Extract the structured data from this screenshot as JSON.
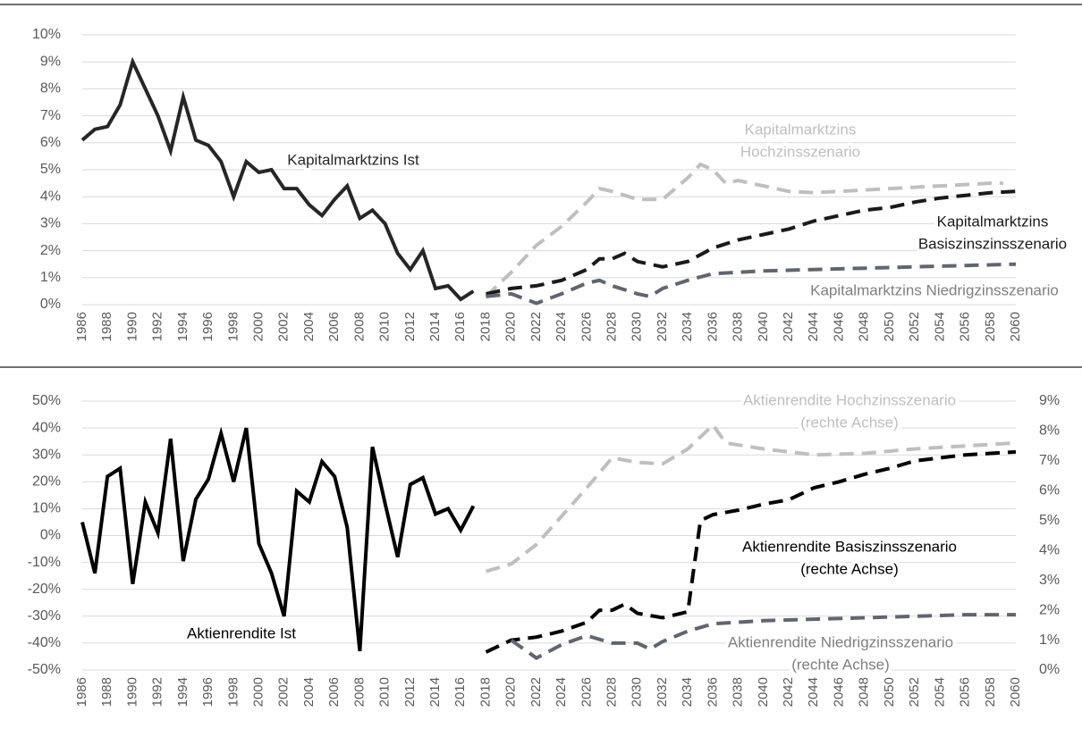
{
  "chart_data": [
    {
      "type": "line",
      "xlim": [
        1986,
        2060
      ],
      "xticks": [
        1986,
        1988,
        1990,
        1992,
        1994,
        1996,
        1998,
        2000,
        2002,
        2004,
        2006,
        2008,
        2010,
        2012,
        2014,
        2016,
        2018,
        2020,
        2022,
        2024,
        2026,
        2028,
        2030,
        2032,
        2034,
        2036,
        2038,
        2040,
        2042,
        2044,
        2046,
        2048,
        2050,
        2052,
        2054,
        2056,
        2058,
        2060
      ],
      "ylim": [
        0,
        10
      ],
      "yticks": [
        {
          "value": 0,
          "label": "0%"
        },
        {
          "value": 1,
          "label": "1%"
        },
        {
          "value": 2,
          "label": "2%"
        },
        {
          "value": 3,
          "label": "3%"
        },
        {
          "value": 4,
          "label": "4%"
        },
        {
          "value": 5,
          "label": "5%"
        },
        {
          "value": 6,
          "label": "6%"
        },
        {
          "value": 7,
          "label": "7%"
        },
        {
          "value": 8,
          "label": "8%"
        },
        {
          "value": 9,
          "label": "9%"
        },
        {
          "value": 10,
          "label": "10%"
        }
      ],
      "grid": true,
      "series": [
        {
          "color": "#262626",
          "dash": false,
          "x": [
            1986,
            1987,
            1988,
            1989,
            1990,
            1991,
            1992,
            1993,
            1994,
            1995,
            1996,
            1997,
            1998,
            1999,
            2000,
            2001,
            2002,
            2003,
            2004,
            2005,
            2006,
            2007,
            2008,
            2009,
            2010,
            2011,
            2012,
            2013,
            2014,
            2015,
            2016,
            2017
          ],
          "values": [
            6.1,
            6.5,
            6.6,
            7.4,
            9.0,
            8.0,
            7.0,
            5.7,
            7.7,
            6.1,
            5.9,
            5.3,
            4.0,
            5.3,
            4.9,
            5.0,
            4.3,
            4.3,
            3.7,
            3.3,
            3.9,
            4.4,
            3.2,
            3.5,
            3.0,
            1.9,
            1.3,
            2.0,
            0.6,
            0.7,
            0.2,
            0.5
          ]
        },
        {
          "color": "#bfbfbf",
          "dash": true,
          "x": [
            2018,
            2020,
            2022,
            2024,
            2026,
            2027,
            2028,
            2030,
            2032,
            2034,
            2035,
            2036,
            2037,
            2038,
            2040,
            2042,
            2044,
            2046,
            2048,
            2050,
            2052,
            2054,
            2056,
            2058,
            2059
          ],
          "values": [
            0.3,
            1.2,
            2.2,
            2.9,
            3.8,
            4.3,
            4.2,
            3.9,
            3.9,
            4.7,
            5.2,
            5.0,
            4.5,
            4.6,
            4.4,
            4.2,
            4.15,
            4.2,
            4.25,
            4.3,
            4.35,
            4.4,
            4.45,
            4.5,
            4.5
          ]
        },
        {
          "color": "#1a1a1a",
          "dash": true,
          "x": [
            2018,
            2020,
            2022,
            2024,
            2026,
            2027,
            2028,
            2029,
            2030,
            2032,
            2034,
            2036,
            2038,
            2040,
            2042,
            2044,
            2046,
            2048,
            2050,
            2052,
            2054,
            2056,
            2058,
            2060
          ],
          "values": [
            0.4,
            0.6,
            0.7,
            0.9,
            1.3,
            1.7,
            1.7,
            1.9,
            1.6,
            1.4,
            1.6,
            2.1,
            2.4,
            2.6,
            2.8,
            3.1,
            3.3,
            3.5,
            3.6,
            3.8,
            3.95,
            4.05,
            4.15,
            4.2
          ]
        },
        {
          "color": "#5f6670",
          "dash": true,
          "x": [
            2018,
            2020,
            2022,
            2024,
            2026,
            2027,
            2028,
            2030,
            2031,
            2032,
            2034,
            2036,
            2038,
            2040,
            2044,
            2048,
            2052,
            2056,
            2060
          ],
          "values": [
            0.3,
            0.4,
            0.05,
            0.4,
            0.8,
            0.9,
            0.7,
            0.4,
            0.3,
            0.6,
            0.9,
            1.15,
            1.2,
            1.25,
            1.3,
            1.35,
            1.4,
            1.45,
            1.5
          ]
        }
      ],
      "annotations": [
        {
          "text": [
            "Kapitalmarktzins Ist"
          ],
          "color": "#262626"
        },
        {
          "text": [
            "Kapitalmarktzins",
            "Hochzinsszenario"
          ],
          "color": "#bfbfbf"
        },
        {
          "text": [
            "Kapitalmarktzins",
            "Basiszinszinsszenario"
          ],
          "color": "#1a1a1a"
        },
        {
          "text": [
            "Kapitalmarktzins Niedrigzinsszenario"
          ],
          "color": "#7f7f7f"
        }
      ]
    },
    {
      "type": "line",
      "xlim": [
        1986,
        2060
      ],
      "xticks": [
        1986,
        1988,
        1990,
        1992,
        1994,
        1996,
        1998,
        2000,
        2002,
        2004,
        2006,
        2008,
        2010,
        2012,
        2014,
        2016,
        2018,
        2020,
        2022,
        2024,
        2026,
        2028,
        2030,
        2032,
        2034,
        2036,
        2038,
        2040,
        2042,
        2044,
        2046,
        2048,
        2050,
        2052,
        2054,
        2056,
        2058,
        2060
      ],
      "ylim": [
        -50,
        50
      ],
      "yticks": [
        {
          "value": -50,
          "label": "-50%"
        },
        {
          "value": -40,
          "label": "-40%"
        },
        {
          "value": -30,
          "label": "-30%"
        },
        {
          "value": -20,
          "label": "-20%"
        },
        {
          "value": -10,
          "label": "-10%"
        },
        {
          "value": 0,
          "label": "0%"
        },
        {
          "value": 10,
          "label": "10%"
        },
        {
          "value": 20,
          "label": "20%"
        },
        {
          "value": 30,
          "label": "30%"
        },
        {
          "value": 40,
          "label": "40%"
        },
        {
          "value": 50,
          "label": "50%"
        }
      ],
      "y2lim": [
        0,
        9
      ],
      "y2ticks": [
        {
          "value": 0,
          "label": "0%"
        },
        {
          "value": 1,
          "label": "1%"
        },
        {
          "value": 2,
          "label": "2%"
        },
        {
          "value": 3,
          "label": "3%"
        },
        {
          "value": 4,
          "label": "4%"
        },
        {
          "value": 5,
          "label": "5%"
        },
        {
          "value": 6,
          "label": "6%"
        },
        {
          "value": 7,
          "label": "7%"
        },
        {
          "value": 8,
          "label": "8%"
        },
        {
          "value": 9,
          "label": "9%"
        }
      ],
      "grid": true,
      "series": [
        {
          "color": "#000000",
          "dash": false,
          "x": [
            1986,
            1987,
            1988,
            1989,
            1990,
            1991,
            1992,
            1993,
            1994,
            1995,
            1996,
            1997,
            1998,
            1999,
            2000,
            2001,
            2002,
            2003,
            2004,
            2005,
            2006,
            2007,
            2008,
            2009,
            2010,
            2011,
            2012,
            2013,
            2014,
            2015,
            2016,
            2017
          ],
          "values": [
            5,
            -14,
            22,
            25,
            -18,
            12.5,
            1,
            36,
            -9.5,
            13.5,
            21,
            38,
            20,
            40,
            -3,
            -14,
            -30,
            16.5,
            12.5,
            27.5,
            22,
            3,
            -43,
            33,
            12,
            -8,
            19,
            21.5,
            8,
            10,
            2,
            11
          ]
        },
        {
          "color": "#bfbfbf",
          "dash": true,
          "axis": "y2",
          "x": [
            2018,
            2020,
            2022,
            2024,
            2026,
            2028,
            2030,
            2032,
            2034,
            2036,
            2037,
            2040,
            2044,
            2048,
            2052,
            2056,
            2060
          ],
          "values": [
            3.3,
            3.55,
            4.2,
            5.15,
            6.1,
            7.1,
            6.95,
            6.9,
            7.4,
            8.2,
            7.6,
            7.4,
            7.2,
            7.25,
            7.4,
            7.5,
            7.6
          ]
        },
        {
          "color": "#000000",
          "dash": true,
          "axis": "y2",
          "x": [
            2018,
            2020,
            2022,
            2024,
            2026,
            2027,
            2028,
            2029,
            2030,
            2032,
            2034,
            2035,
            2036,
            2038,
            2040,
            2042,
            2044,
            2046,
            2048,
            2050,
            2052,
            2054,
            2056,
            2058,
            2060
          ],
          "values": [
            0.6,
            1.0,
            1.1,
            1.3,
            1.6,
            2.0,
            2.0,
            2.2,
            1.9,
            1.75,
            1.95,
            5.0,
            5.2,
            5.35,
            5.55,
            5.7,
            6.1,
            6.3,
            6.55,
            6.75,
            7.0,
            7.1,
            7.2,
            7.25,
            7.3
          ]
        },
        {
          "color": "#5f6670",
          "dash": true,
          "axis": "y2",
          "x": [
            2020,
            2022,
            2024,
            2026,
            2028,
            2030,
            2031,
            2032,
            2034,
            2036,
            2040,
            2044,
            2048,
            2052,
            2056,
            2060
          ],
          "values": [
            1.0,
            0.4,
            0.85,
            1.15,
            0.9,
            0.9,
            0.7,
            0.95,
            1.3,
            1.55,
            1.65,
            1.7,
            1.75,
            1.8,
            1.85,
            1.85
          ]
        }
      ],
      "annotations": [
        {
          "text": [
            "Aktienrendite Ist"
          ],
          "color": "#000000"
        },
        {
          "text": [
            "Aktienrendite Hochzinsszenario",
            "(rechte Achse)"
          ],
          "color": "#bfbfbf"
        },
        {
          "text": [
            "Aktienrendite Basiszinsszenario",
            "(rechte Achse)"
          ],
          "color": "#000000"
        },
        {
          "text": [
            "Aktienrendite Niedrigzinsszenario",
            "(rechte Achse)"
          ],
          "color": "#7f7f7f"
        }
      ]
    }
  ]
}
